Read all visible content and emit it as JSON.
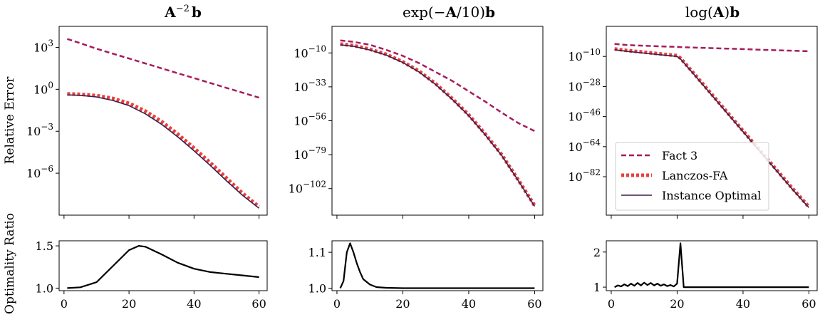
{
  "figure": {
    "ylabel_top": "Relative Error",
    "ylabel_bottom": "Optimality Ratio"
  },
  "legend": {
    "placement": "lower-right of third top panel",
    "entries": [
      {
        "name": "Fact 3",
        "color": "#a51c5c",
        "style": "dashed"
      },
      {
        "name": "Lanczos-FA",
        "color": "#e8403c",
        "style": "dotted"
      },
      {
        "name": "Instance Optimal",
        "color": "#3b1e4f",
        "style": "solid"
      }
    ]
  },
  "chart_data": [
    {
      "type": "line",
      "title_parts": {
        "main": "A",
        "sup": "−2",
        "tail": "b"
      },
      "x": [
        1,
        5,
        10,
        15,
        20,
        25,
        30,
        35,
        40,
        45,
        50,
        55,
        60
      ],
      "xlim": [
        -1.5,
        62.5
      ],
      "ylim_log10": [
        -9,
        4.5
      ],
      "ytick_exponents": [
        3,
        0,
        -3,
        -6
      ],
      "ytick_labels": [
        "10^3",
        "10^0",
        "10^-3",
        "10^-6"
      ],
      "xticks": [
        0,
        20,
        40,
        60
      ],
      "series": [
        {
          "name": "Fact 3",
          "log10_values": [
            3.6,
            3.3,
            2.9,
            2.55,
            2.2,
            1.85,
            1.5,
            1.15,
            0.8,
            0.45,
            0.1,
            -0.25,
            -0.6
          ]
        },
        {
          "name": "Lanczos-FA",
          "log10_values": [
            -0.33,
            -0.36,
            -0.45,
            -0.65,
            -1.0,
            -1.55,
            -2.3,
            -3.2,
            -4.2,
            -5.25,
            -6.35,
            -7.45,
            -8.4
          ]
        },
        {
          "name": "Instance Optimal",
          "log10_values": [
            -0.4,
            -0.43,
            -0.55,
            -0.8,
            -1.17,
            -1.75,
            -2.5,
            -3.4,
            -4.4,
            -5.45,
            -6.55,
            -7.6,
            -8.5
          ]
        }
      ],
      "ratio": {
        "x": [
          1,
          5,
          10,
          15,
          20,
          23,
          25,
          30,
          35,
          40,
          45,
          50,
          55,
          60
        ],
        "values": [
          1.0,
          1.01,
          1.07,
          1.26,
          1.45,
          1.5,
          1.49,
          1.4,
          1.3,
          1.23,
          1.19,
          1.17,
          1.15,
          1.13
        ],
        "ylim": [
          0.97,
          1.56
        ],
        "yticks": [
          1.0,
          1.5
        ],
        "ytick_labels": [
          "1.0",
          "1.5"
        ],
        "xtick_labels": [
          "0",
          "20",
          "40",
          "60"
        ]
      }
    },
    {
      "type": "line",
      "title_parts": {
        "pre": "exp(−",
        "main": "A",
        "mid": "/10)",
        "tail": "b"
      },
      "x": [
        1,
        5,
        10,
        15,
        20,
        25,
        30,
        35,
        40,
        45,
        50,
        55,
        60
      ],
      "xlim": [
        -1.5,
        62.5
      ],
      "ylim_log10": [
        -120,
        8
      ],
      "ytick_exponents": [
        -10,
        -33,
        -56,
        -79,
        -102
      ],
      "ytick_labels": [
        "10^-10",
        "10^-33",
        "10^-56",
        "10^-79",
        "10^-102"
      ],
      "xticks": [
        0,
        20,
        40,
        60
      ],
      "series": [
        {
          "name": "Fact 3",
          "log10_values": [
            -1.5,
            -2.5,
            -4.5,
            -8,
            -12,
            -17,
            -23,
            -29,
            -36,
            -43,
            -50.5,
            -57.5,
            -63
          ]
        },
        {
          "name": "Lanczos-FA",
          "log10_values": [
            -4,
            -5,
            -7.5,
            -11,
            -16,
            -22.5,
            -31,
            -41,
            -52,
            -65,
            -79,
            -96,
            -113.5
          ]
        },
        {
          "name": "Instance Optimal",
          "log10_values": [
            -4.5,
            -5.5,
            -8,
            -11.5,
            -16.5,
            -23,
            -31.5,
            -41.5,
            -52.5,
            -65.5,
            -79.5,
            -96.5,
            -114
          ]
        }
      ],
      "ratio": {
        "x": [
          1,
          2,
          3,
          4,
          5,
          6,
          7,
          8,
          10,
          12,
          15,
          20,
          30,
          40,
          50,
          60
        ],
        "values": [
          1.0,
          1.02,
          1.1,
          1.125,
          1.1,
          1.07,
          1.045,
          1.025,
          1.01,
          1.003,
          1.001,
          1.0,
          1.0,
          1.0,
          1.0,
          1.0
        ],
        "ylim": [
          0.993,
          1.132
        ],
        "yticks": [
          1.0,
          1.1
        ],
        "ytick_labels": [
          "1.0",
          "1.1"
        ],
        "xtick_labels": [
          "0",
          "20",
          "40",
          "60"
        ]
      }
    },
    {
      "type": "line",
      "title_parts": {
        "pre": "log(",
        "main": "A",
        "mid": ")",
        "tail": "b"
      },
      "x": [
        1,
        5,
        10,
        15,
        20,
        21,
        25,
        30,
        35,
        40,
        45,
        50,
        55,
        60
      ],
      "xlim": [
        -1.5,
        62.5
      ],
      "ylim_log10": [
        -105,
        8
      ],
      "ytick_exponents": [
        -10,
        -28,
        -46,
        -64,
        -82
      ],
      "ytick_labels": [
        "10^-10",
        "10^-28",
        "10^-46",
        "10^-64",
        "10^-82"
      ],
      "xticks": [
        0,
        20,
        40,
        60
      ],
      "series": [
        {
          "name": "Fact 3",
          "log10_values": [
            -2.5,
            -3.2,
            -3.6,
            -4,
            -4.3,
            -4.4,
            -4.7,
            -5,
            -5.3,
            -5.6,
            -6,
            -6.3,
            -6.6,
            -6.9
          ]
        },
        {
          "name": "Lanczos-FA",
          "log10_values": [
            -5.5,
            -6.5,
            -7.5,
            -8.5,
            -9.5,
            -11,
            -20,
            -31.5,
            -43,
            -54.5,
            -66,
            -77.5,
            -89,
            -100
          ]
        },
        {
          "name": "Instance Optimal",
          "log10_values": [
            -6,
            -7,
            -8,
            -9,
            -10,
            -11.5,
            -20.5,
            -32,
            -43.5,
            -55,
            -66.5,
            -78,
            -89.5,
            -100.5
          ]
        }
      ],
      "ratio": {
        "x": [
          1,
          2,
          3,
          4,
          5,
          6,
          7,
          8,
          9,
          10,
          11,
          12,
          13,
          14,
          15,
          16,
          17,
          18,
          19,
          20,
          21,
          22,
          23,
          30,
          40,
          50,
          60
        ],
        "values": [
          1.0,
          1.05,
          1.02,
          1.08,
          1.03,
          1.1,
          1.04,
          1.12,
          1.05,
          1.13,
          1.06,
          1.12,
          1.05,
          1.1,
          1.04,
          1.08,
          1.03,
          1.06,
          1.02,
          1.1,
          2.25,
          1.0,
          1.0,
          1.0,
          1.0,
          1.0,
          1.0
        ],
        "ylim": [
          0.9,
          2.32
        ],
        "yticks": [
          1,
          2
        ],
        "ytick_labels": [
          "1",
          "2"
        ],
        "xtick_labels": [
          "0",
          "20",
          "40",
          "60"
        ]
      }
    }
  ]
}
